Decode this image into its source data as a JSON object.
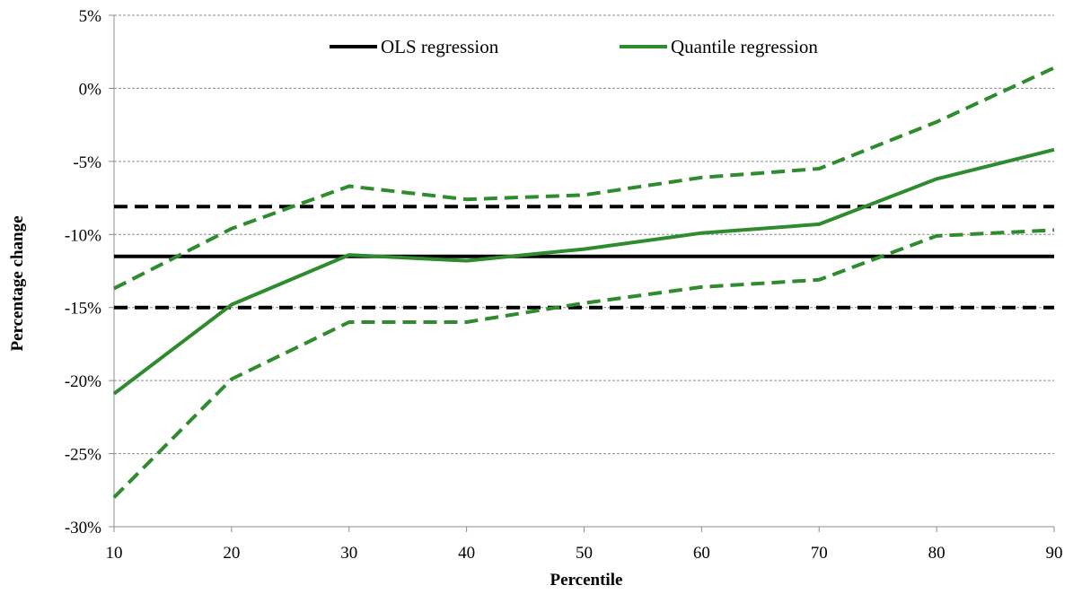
{
  "chart_data": {
    "type": "line",
    "title": "",
    "xlabel": "Percentile",
    "ylabel": "Percentage change",
    "x": [
      10,
      20,
      30,
      40,
      50,
      60,
      70,
      80,
      90
    ],
    "xlim": [
      10,
      90
    ],
    "ylim": [
      -0.3,
      0.05
    ],
    "x_ticks": [
      "10",
      "20",
      "30",
      "40",
      "50",
      "60",
      "70",
      "80",
      "90"
    ],
    "y_ticks": [
      {
        "value": 0.05,
        "label": "5%"
      },
      {
        "value": 0.0,
        "label": "0%"
      },
      {
        "value": -0.05,
        "label": "-5%"
      },
      {
        "value": -0.1,
        "label": "-10%"
      },
      {
        "value": -0.15,
        "label": "-15%"
      },
      {
        "value": -0.2,
        "label": "-20%"
      },
      {
        "value": -0.25,
        "label": "-25%"
      },
      {
        "value": -0.3,
        "label": "-30%"
      }
    ],
    "grid": "horizontal dashed",
    "legend_position": "top",
    "legend": [
      {
        "label": "OLS regression",
        "color": "#000000"
      },
      {
        "label": "Quantile regression",
        "color": "#2e8b2e"
      }
    ],
    "series": [
      {
        "name": "OLS regression",
        "color": "#000000",
        "dashed": false,
        "values": [
          -0.115,
          -0.115,
          -0.115,
          -0.115,
          -0.115,
          -0.115,
          -0.115,
          -0.115,
          -0.115
        ]
      },
      {
        "color": "#000000",
        "dashed": true,
        "values": [
          -0.081,
          -0.081,
          -0.081,
          -0.081,
          -0.081,
          -0.081,
          -0.081,
          -0.081,
          -0.081
        ]
      },
      {
        "color": "#000000",
        "dashed": true,
        "values": [
          -0.15,
          -0.15,
          -0.15,
          -0.15,
          -0.15,
          -0.15,
          -0.15,
          -0.15,
          -0.15
        ]
      },
      {
        "name": "Quantile regression",
        "color": "#2e8b2e",
        "dashed": false,
        "values": [
          -0.209,
          -0.148,
          -0.114,
          -0.118,
          -0.11,
          -0.099,
          -0.093,
          -0.062,
          -0.042
        ]
      },
      {
        "color": "#2e8b2e",
        "dashed": true,
        "values": [
          -0.137,
          -0.096,
          -0.067,
          -0.076,
          -0.073,
          -0.061,
          -0.055,
          -0.023,
          0.014
        ]
      },
      {
        "color": "#2e8b2e",
        "dashed": true,
        "values": [
          -0.28,
          -0.199,
          -0.16,
          -0.16,
          -0.147,
          -0.136,
          -0.131,
          -0.101,
          -0.097
        ]
      }
    ]
  }
}
